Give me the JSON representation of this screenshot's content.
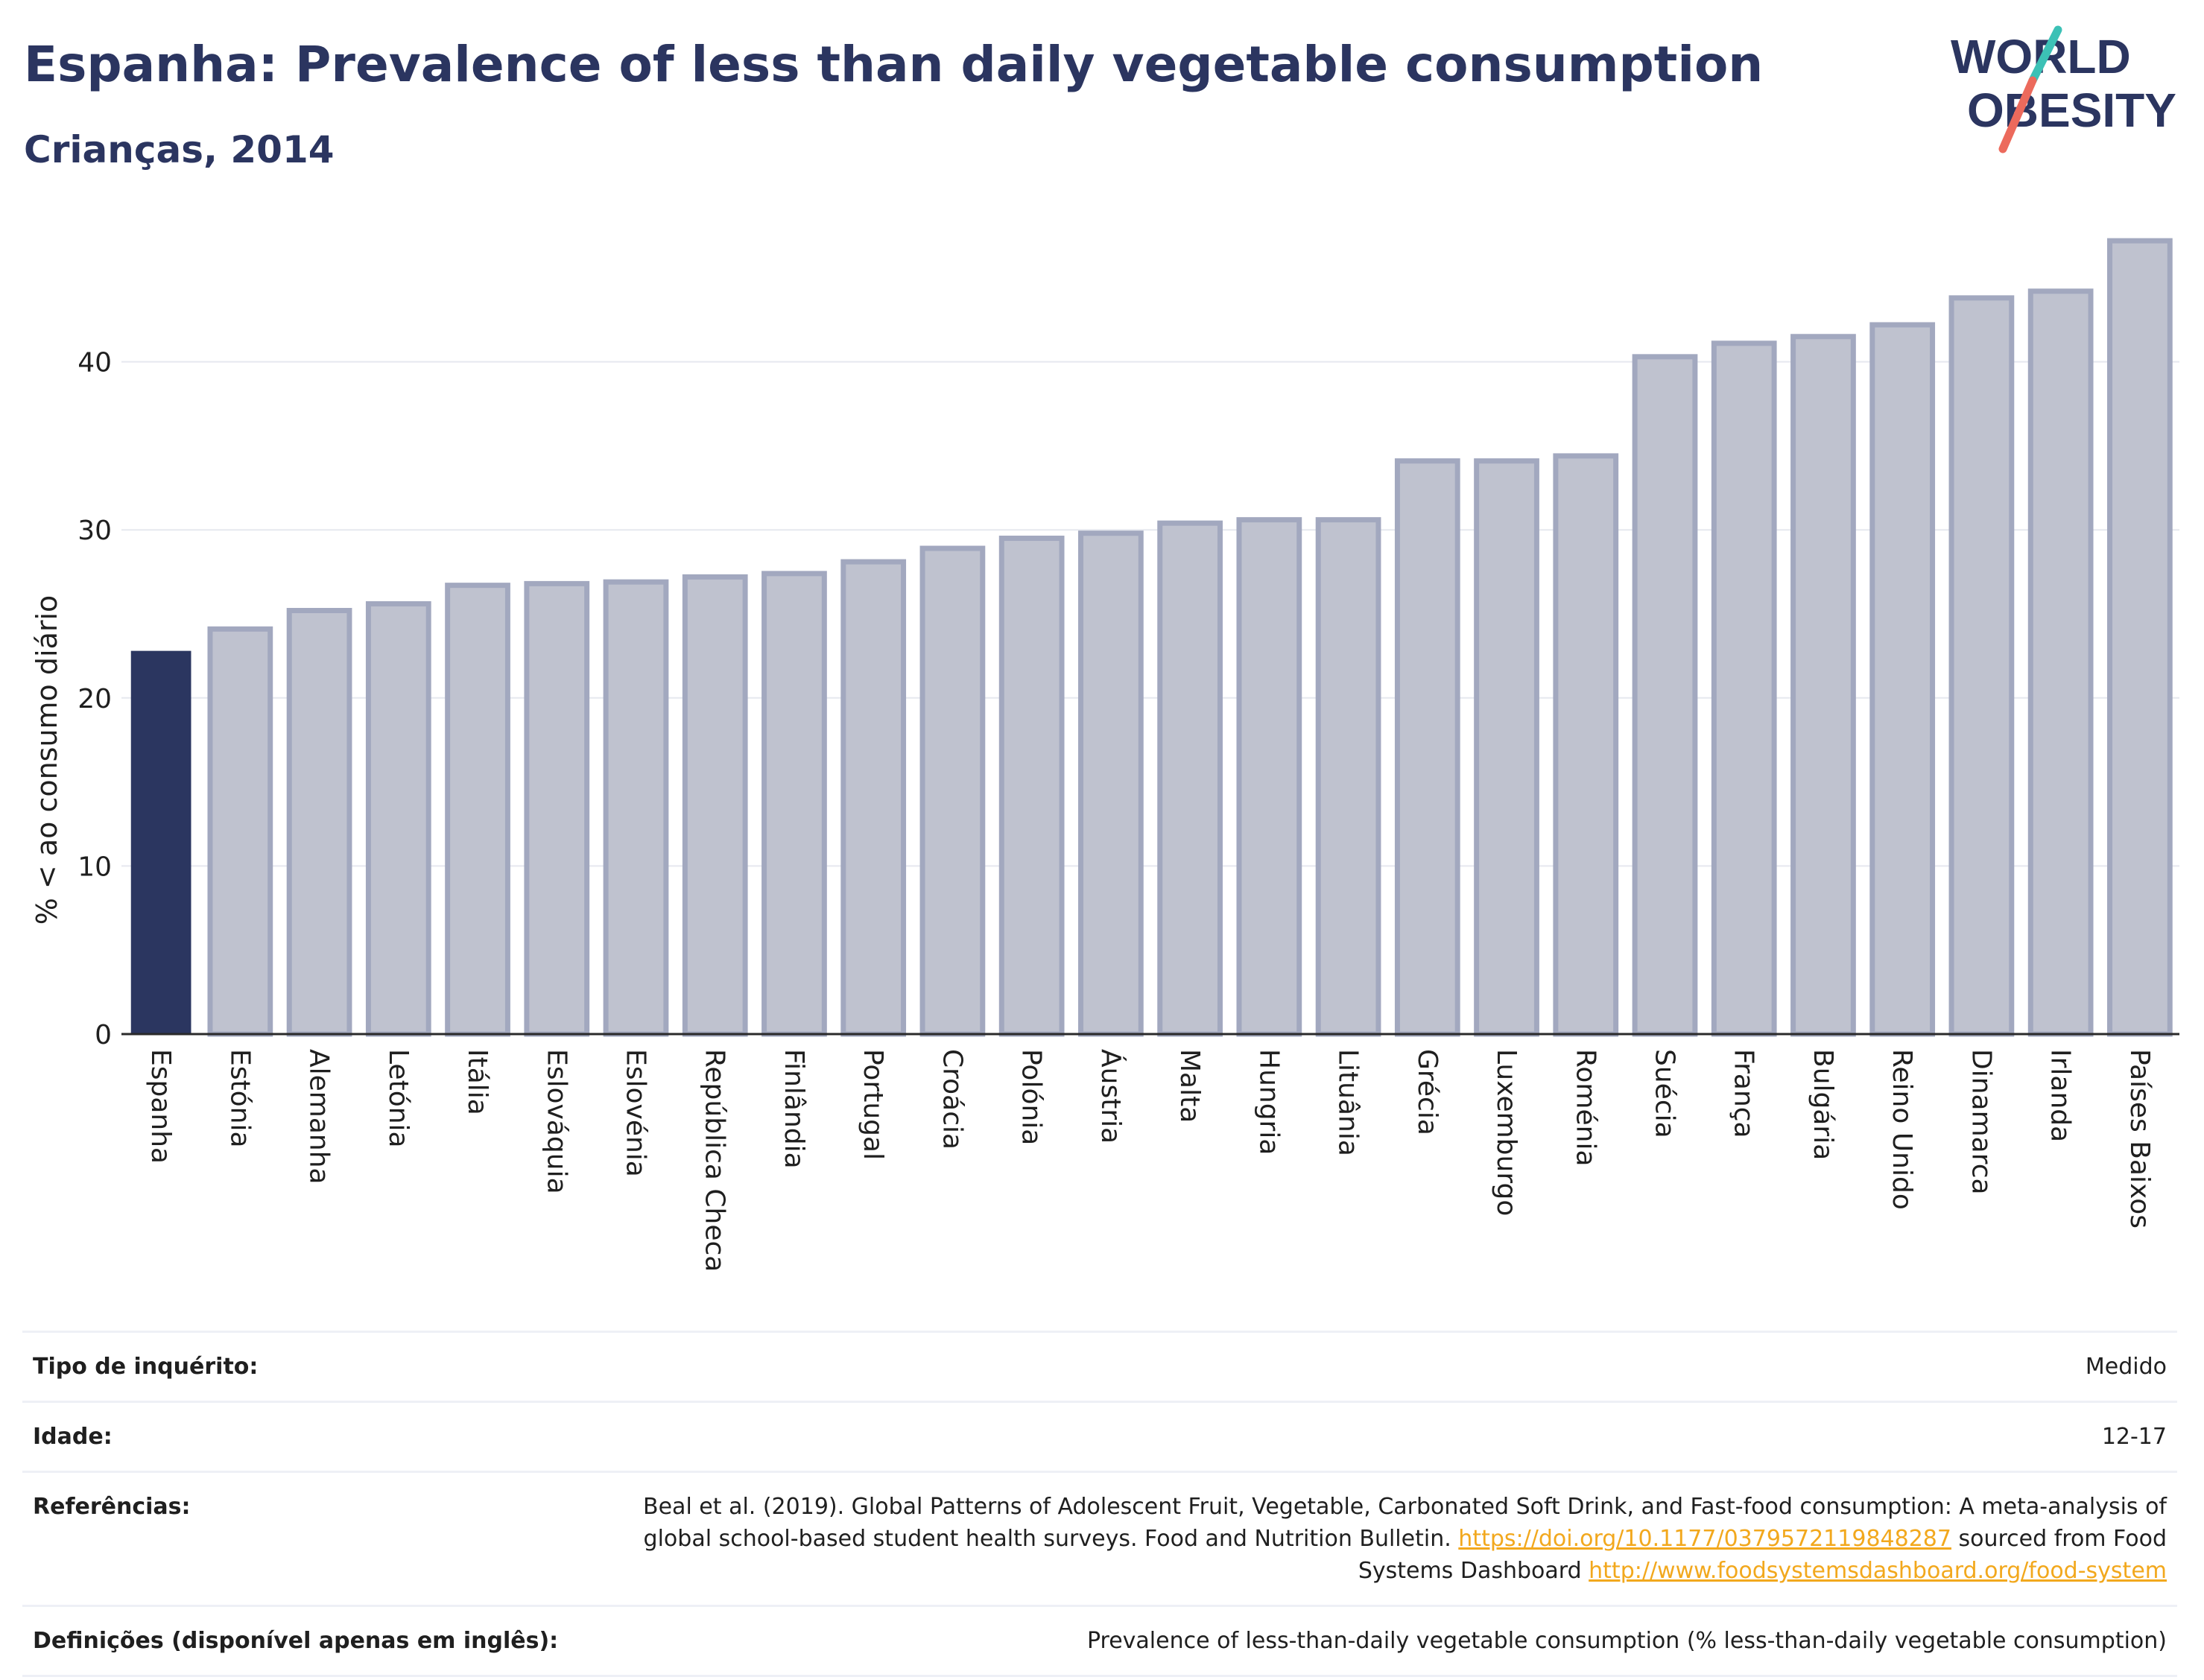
{
  "header": {
    "title": "Espanha: Prevalence of less than daily vegetable consumption",
    "subtitle": "Crianças, 2014"
  },
  "logo": {
    "line1": "WORLD",
    "line2": "OBESITY"
  },
  "colors": {
    "highlight": "#2b3660",
    "bar_fill": "#bfc2cf",
    "bar_stroke": "#a2a8bf",
    "text": "#2b3560",
    "logo_teal": "#3cc1b6",
    "logo_coral": "#ec6a5c",
    "link": "#f2a81d"
  },
  "chart_data": {
    "type": "bar",
    "title": "Espanha: Prevalence of less than daily vegetable consumption",
    "subtitle": "Crianças, 2014",
    "xlabel": "",
    "ylabel": "% < ao consumo diário",
    "ylim": [
      0,
      50
    ],
    "yticks": [
      0,
      10,
      20,
      30,
      40
    ],
    "grid": true,
    "highlight": "Espanha",
    "categories": [
      "Espanha",
      "Estónia",
      "Alemanha",
      "Letónia",
      "Itália",
      "Eslováquia",
      "Eslovénia",
      "República Checa",
      "Finlândia",
      "Portugal",
      "Croácia",
      "Polónia",
      "Áustria",
      "Malta",
      "Hungria",
      "Lituânia",
      "Grécia",
      "Luxemburgo",
      "Roménia",
      "Suécia",
      "França",
      "Bulgária",
      "Reino Unido",
      "Dinamarca",
      "Irlanda",
      "Países Baixos"
    ],
    "values": [
      22.8,
      24.1,
      25.2,
      25.6,
      26.7,
      26.8,
      26.9,
      27.2,
      27.4,
      28.1,
      28.9,
      29.5,
      29.8,
      30.4,
      30.6,
      30.6,
      34.1,
      34.1,
      34.4,
      40.3,
      41.1,
      41.5,
      42.2,
      43.8,
      44.2,
      47.2
    ]
  },
  "info": {
    "survey_label": "Tipo de inquérito:",
    "survey_value": "Medido",
    "age_label": "Idade:",
    "age_value": "12-17",
    "ref_label": "Referências:",
    "ref_text1": "Beal et al. (2019). Global Patterns of Adolescent Fruit, Vegetable, Carbonated Soft Drink, and Fast-food consumption: A meta-analysis of global school-based student health surveys. Food and Nutrition Bulletin. ",
    "ref_link1": "https://doi.org/10.1177/0379572119848287",
    "ref_text2": " sourced from Food Systems Dashboard ",
    "ref_link2": "http://www.foodsystemsdashboard.org/food-system",
    "def_label": "Definições (disponível apenas em inglês):",
    "def_value": "Prevalence of less-than-daily vegetable consumption (% less-than-daily vegetable consumption)"
  }
}
